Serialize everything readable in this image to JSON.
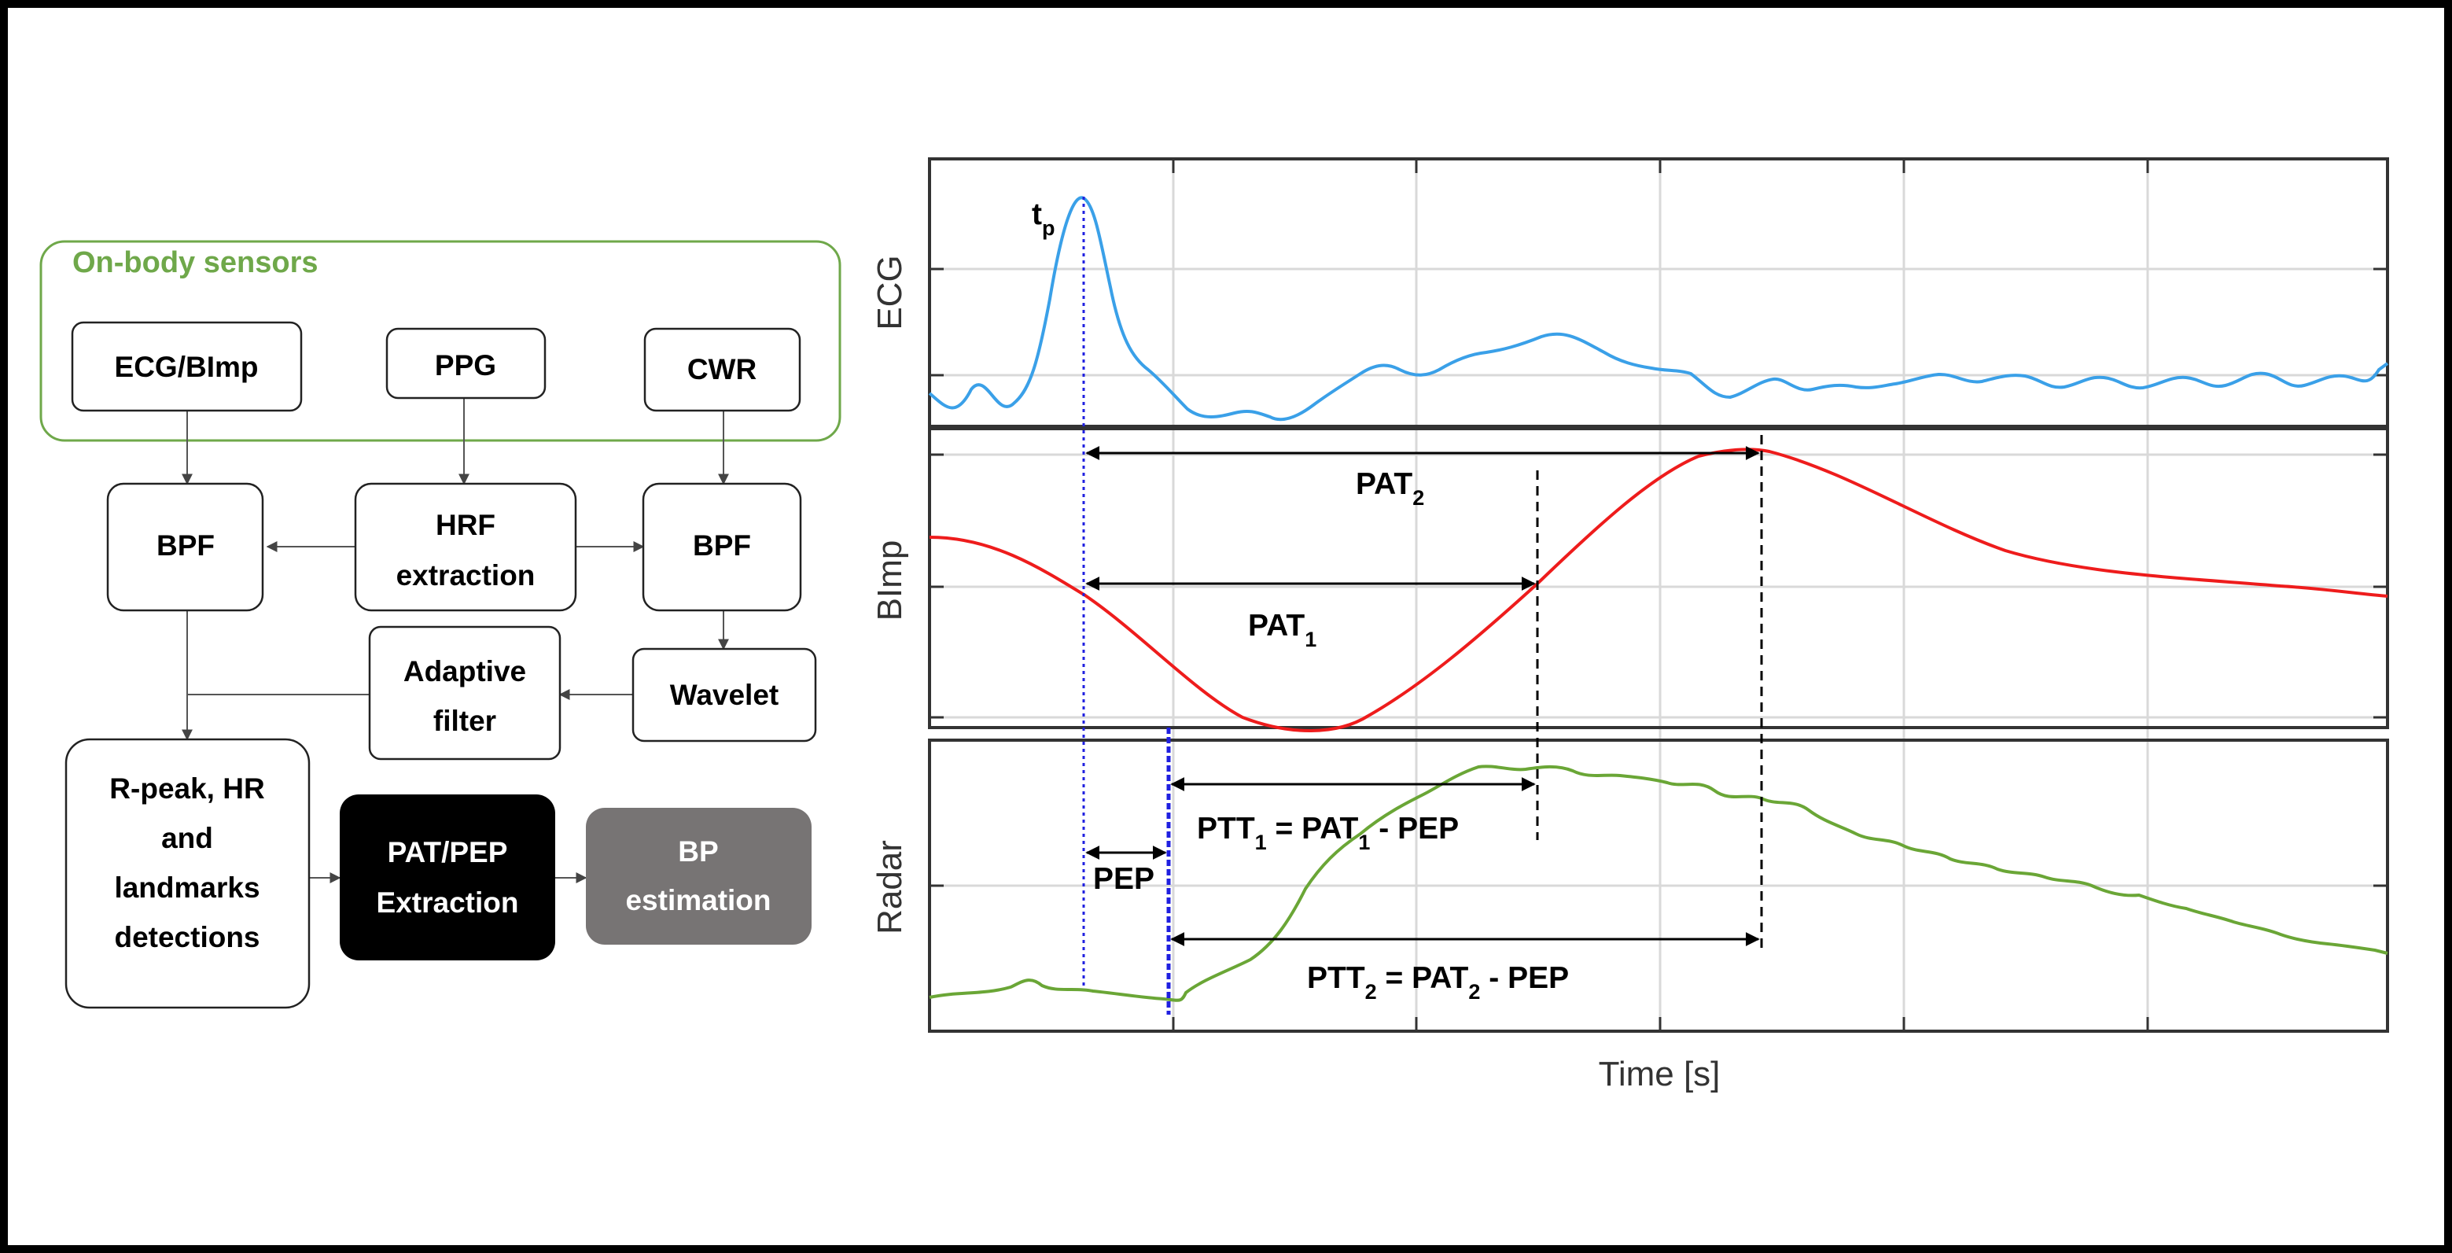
{
  "flowchart": {
    "sensor_group_label": "On-body sensors",
    "colors": {
      "group_border": "#6fa84a",
      "group_text": "#6fa84a",
      "dark_box": "#000000",
      "gray_box": "#777474"
    },
    "nodes": {
      "ecg_bimp": "ECG/BImp",
      "ppg": "PPG",
      "cwr": "CWR",
      "bpf_left": "BPF",
      "hrf_line1": "HRF",
      "hrf_line2": "extraction",
      "bpf_right": "BPF",
      "adaptive_line1": "Adaptive",
      "adaptive_line2": "filter",
      "wavelet": "Wavelet",
      "rpeak_line1": "R-peak, HR",
      "rpeak_line2": "and",
      "rpeak_line3": "landmarks",
      "rpeak_line4": "detections",
      "patpep_line1": "PAT/PEP",
      "patpep_line2": "Extraction",
      "bp_line1": "BP",
      "bp_line2": "estimation"
    }
  },
  "plots": {
    "xlabel": "Time [s]",
    "panels": [
      {
        "ylabel": "ECG",
        "color": "#3aa0e8"
      },
      {
        "ylabel": "BImp",
        "color": "#ee1c1c"
      },
      {
        "ylabel": "Radar",
        "color": "#6aa636"
      }
    ],
    "annotations": {
      "tp": "t",
      "tp_sub": "p",
      "pat2": "PAT",
      "pat2_sub": "2",
      "pat1": "PAT",
      "pat1_sub": "1",
      "ptt1_a": "PTT",
      "ptt1_a_sub": "1",
      "ptt1_b": " = PAT",
      "ptt1_b_sub": "1",
      "ptt1_c": " - PEP",
      "pep": "PEP",
      "ptt2_a": "PTT",
      "ptt2_a_sub": "2",
      "ptt2_b": " = PAT",
      "ptt2_b_sub": "2",
      "ptt2_c": " - PEP"
    }
  }
}
